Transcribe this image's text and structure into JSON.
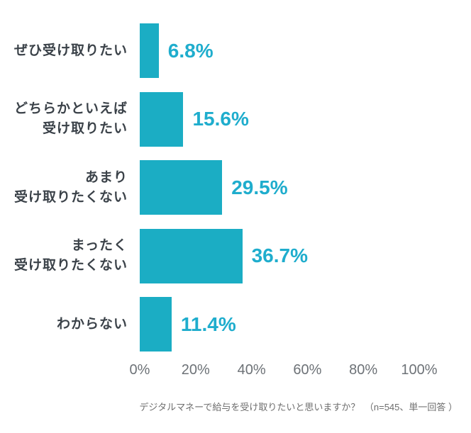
{
  "colors": {
    "background": "#ffffff",
    "bar": "#1badc4",
    "value_text": "#1fadcd",
    "category_text": "#3b4249",
    "tick_text": "#6d7277",
    "caption_text": "#6e6e6e"
  },
  "chart_data": {
    "type": "bar",
    "orientation": "horizontal",
    "categories": [
      "ぜひ受け取りたい",
      "どちらかといえば受け取りたい",
      "あまり受け取りたくない",
      "まったく受け取りたくない",
      "わからない"
    ],
    "category_lines": [
      [
        "ぜひ受け取りたい"
      ],
      [
        "どちらかといえば",
        "受け取りたい"
      ],
      [
        "あまり",
        "受け取りたくない"
      ],
      [
        "まったく",
        "受け取りたくない"
      ],
      [
        "わからない"
      ]
    ],
    "values": [
      6.8,
      15.6,
      29.5,
      36.7,
      11.4
    ],
    "value_labels": [
      "6.8%",
      "15.6%",
      "29.5%",
      "36.7%",
      "11.4%"
    ],
    "x_ticks": [
      0,
      20,
      40,
      60,
      80,
      100
    ],
    "x_tick_labels": [
      "0%",
      "20%",
      "40%",
      "60%",
      "80%",
      "100%"
    ],
    "xlim": [
      0,
      100
    ],
    "grid": false,
    "title": "",
    "xlabel": "",
    "ylabel": "",
    "caption": "デジタルマネーで給与を受け取りたいと思いますか？　（n=545、単一回答 ）"
  }
}
